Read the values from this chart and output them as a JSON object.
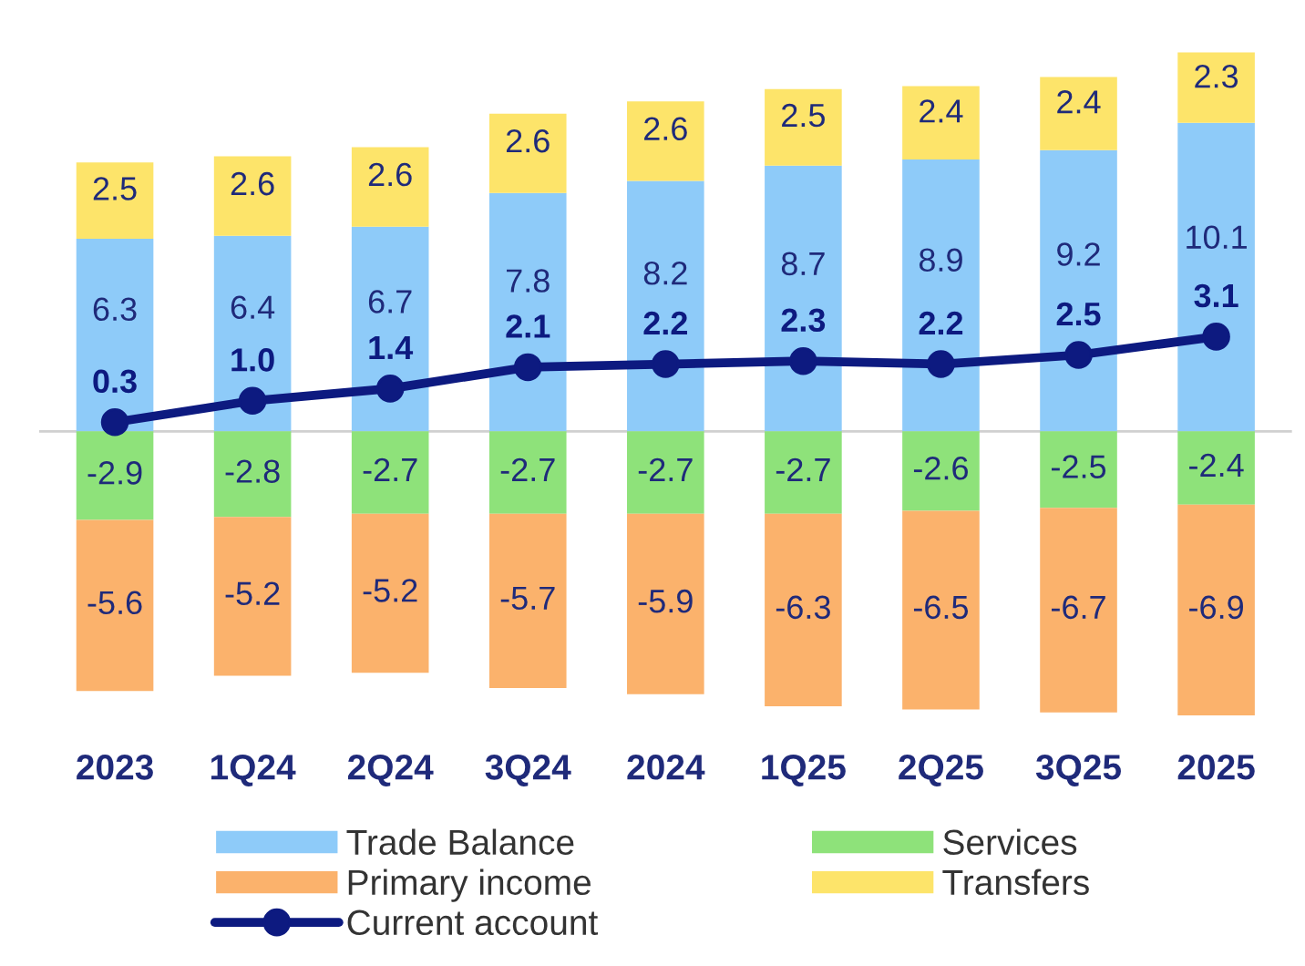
{
  "chart_data": {
    "type": "bar",
    "stacked": true,
    "data_labels": true,
    "grid": false,
    "legend": "bottom",
    "categories": [
      "2023",
      "1Q24",
      "2Q24",
      "3Q24",
      "2024",
      "1Q25",
      "2Q25",
      "3Q25",
      "2025"
    ],
    "series": [
      {
        "name": "Trade Balance",
        "color": "#8ecbf9",
        "values": [
          6.3,
          6.4,
          6.7,
          7.8,
          8.2,
          8.7,
          8.9,
          9.2,
          10.1
        ]
      },
      {
        "name": "Services",
        "color": "#8ee27a",
        "values": [
          -2.9,
          -2.8,
          -2.7,
          -2.7,
          -2.7,
          -2.7,
          -2.6,
          -2.5,
          -2.4
        ]
      },
      {
        "name": "Primary income",
        "color": "#fbb26c",
        "values": [
          -5.6,
          -5.2,
          -5.2,
          -5.7,
          -5.9,
          -6.3,
          -6.5,
          -6.7,
          -6.9
        ]
      },
      {
        "name": "Transfers",
        "color": "#fde46a",
        "values": [
          2.5,
          2.6,
          2.6,
          2.6,
          2.6,
          2.5,
          2.4,
          2.4,
          2.3
        ]
      },
      {
        "name": "Current account",
        "type": "line",
        "color": "#0d1a80",
        "marker": "circle",
        "line_style": "solid",
        "values": [
          0.3,
          1.0,
          1.4,
          2.1,
          2.2,
          2.3,
          2.2,
          2.5,
          3.1
        ],
        "value_labels": [
          "0.3",
          "1.0",
          "1.4",
          "2.1",
          "2.2",
          "2.3",
          "2.2",
          "2.5",
          "3.1"
        ]
      }
    ]
  }
}
